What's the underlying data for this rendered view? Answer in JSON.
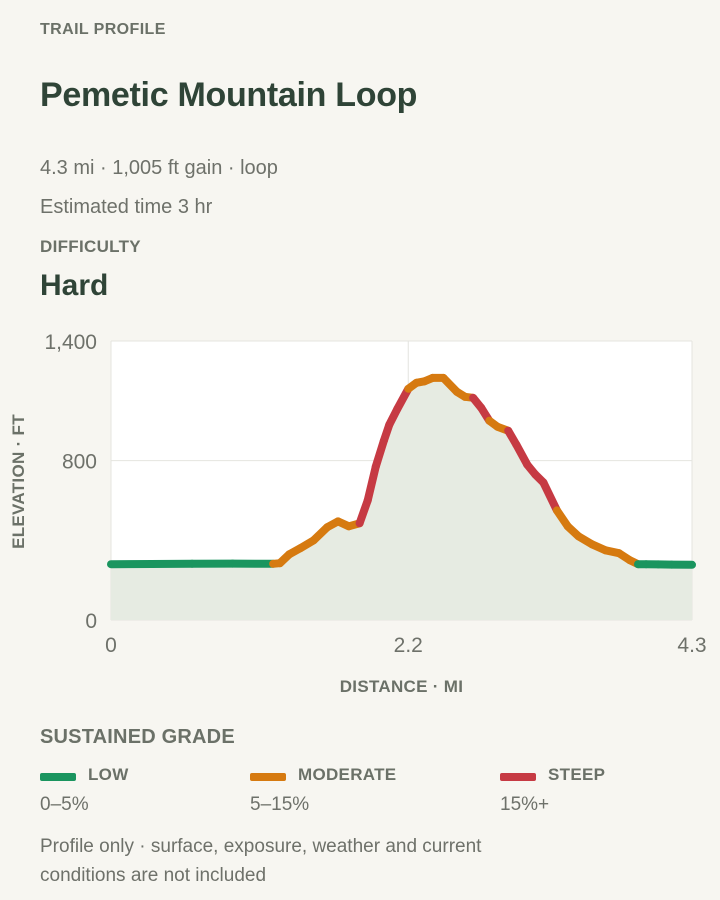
{
  "header": {
    "eyebrow": "TRAIL PROFILE",
    "title": "Pemetic Mountain Loop",
    "stats": "4.3 mi · 1,005 ft gain · loop",
    "time": "Estimated time 3 hr",
    "difficulty_label": "DIFFICULTY",
    "difficulty_value": "Hard"
  },
  "chart_data": {
    "type": "line",
    "ylabel": "ELEVATION · FT",
    "xlabel": "DISTANCE · MI",
    "xlim": [
      0,
      4.3
    ],
    "ylim": [
      0,
      1400
    ],
    "xticks": [
      {
        "value": 0,
        "label": "0"
      },
      {
        "value": 2.2,
        "label": "2.2"
      },
      {
        "value": 4.3,
        "label": "4.3"
      }
    ],
    "yticks": [
      {
        "value": 0,
        "label": "0"
      },
      {
        "value": 800,
        "label": "800"
      },
      {
        "value": 1400,
        "label": "1,400"
      }
    ],
    "grid": true,
    "series": [
      {
        "x": [
          0,
          0.3,
          0.6,
          0.9,
          1.2,
          1.25,
          1.32,
          1.4,
          1.5,
          1.6,
          1.68,
          1.76,
          1.84,
          1.9,
          1.96,
          2.02,
          2.06,
          2.12,
          2.2,
          2.26,
          2.32,
          2.38,
          2.46,
          2.56,
          2.62,
          2.68,
          2.74,
          2.8,
          2.86,
          2.94,
          3.0,
          3.08,
          3.14,
          3.2,
          3.3,
          3.38,
          3.46,
          3.56,
          3.66,
          3.76,
          3.84,
          3.9,
          3.96,
          4.05,
          4.15,
          4.3
        ],
        "y": [
          280,
          281,
          282,
          283,
          282,
          285,
          330,
          360,
          400,
          465,
          495,
          470,
          485,
          600,
          770,
          900,
          980,
          1060,
          1160,
          1190,
          1198,
          1215,
          1215,
          1145,
          1120,
          1115,
          1065,
          1000,
          970,
          950,
          880,
          780,
          730,
          690,
          550,
          470,
          420,
          380,
          350,
          335,
          300,
          280,
          280,
          279,
          278,
          277
        ],
        "grade": [
          "low",
          "low",
          "low",
          "low",
          "moderate",
          "moderate",
          "moderate",
          "moderate",
          "moderate",
          "moderate",
          "moderate",
          "moderate",
          "steep",
          "steep",
          "steep",
          "steep",
          "steep",
          "steep",
          "moderate",
          "moderate",
          "moderate",
          "moderate",
          "moderate",
          "moderate",
          "moderate",
          "steep",
          "steep",
          "moderate",
          "moderate",
          "steep",
          "steep",
          "steep",
          "steep",
          "steep",
          "moderate",
          "moderate",
          "moderate",
          "moderate",
          "moderate",
          "moderate",
          "moderate",
          "low",
          "low",
          "low",
          "low"
        ]
      }
    ]
  },
  "grades": {
    "title": "SUSTAINED GRADE",
    "items": [
      {
        "key": "low",
        "name": "LOW",
        "range": "0–5%",
        "color": "#1a955f"
      },
      {
        "key": "moderate",
        "name": "MODERATE",
        "range": "5–15%",
        "color": "#d67a10"
      },
      {
        "key": "steep",
        "name": "STEEP",
        "range": "15%+",
        "color": "#c63a43"
      }
    ]
  },
  "colors": {
    "fill": "#e6ebe2",
    "grid": "#e4e4df",
    "plot_bg": "#ffffff"
  },
  "note": "Profile only · surface, exposure, weather and current conditions are not included"
}
